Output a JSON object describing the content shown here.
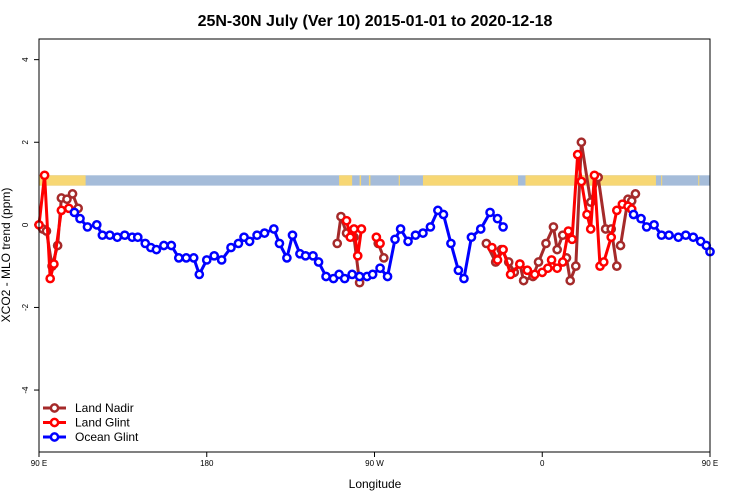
{
  "chart_data": {
    "type": "line",
    "title": "25N-30N July (Ver 10)   2015-01-01 to 2020-12-18",
    "xlabel": "Longitude",
    "ylabel": "XCO2 - MLO trend (ppm)",
    "xlim": [
      90,
      450
    ],
    "ylim": [
      -5.5,
      4.5
    ],
    "x_ticks": [
      {
        "value": 90,
        "label": "90 E"
      },
      {
        "value": 180,
        "label": "180"
      },
      {
        "value": 270,
        "label": "90 W"
      },
      {
        "value": 360,
        "label": "0"
      },
      {
        "value": 450,
        "label": "90 E"
      },
      {
        "value": 540,
        "label": "180"
      }
    ],
    "y_ticks": [
      {
        "value": 4,
        "label": "4"
      },
      {
        "value": 2,
        "label": "2"
      },
      {
        "value": 0,
        "label": "0"
      },
      {
        "value": -2,
        "label": "-2"
      },
      {
        "value": -4,
        "label": "-4"
      }
    ],
    "land_mask": {
      "y_bottom": 0.95,
      "y_top": 1.2,
      "ocean_color": "#a5bcd9",
      "land_color": "#f7d774",
      "land_intervals": [
        [
          90,
          115
        ],
        [
          251,
          258
        ],
        [
          262,
          262.8
        ],
        [
          267,
          267.8
        ],
        [
          283,
          283.6
        ],
        [
          296,
          347
        ],
        [
          351,
          421
        ],
        [
          423.8,
          424.2
        ],
        [
          443.7,
          444
        ]
      ]
    },
    "series": [
      {
        "name": "Land Nadir",
        "color": "#a52a2a",
        "segments": [
          {
            "x": [
              92,
              94,
              97,
              100,
              102,
              105,
              108,
              111
            ],
            "y": [
              -0.1,
              -0.15,
              -1.0,
              -0.5,
              0.65,
              0.62,
              0.75,
              0.4
            ]
          },
          {
            "x": [
              250,
              252,
              255,
              259,
              262
            ],
            "y": [
              -0.45,
              0.2,
              -0.2,
              -0.3,
              -1.4
            ]
          },
          {
            "x": [
              272,
              275
            ],
            "y": [
              -0.45,
              -0.8
            ]
          },
          {
            "x": [
              330,
              335,
              338,
              342,
              345,
              348,
              350,
              355,
              358,
              362,
              366,
              368,
              371
            ],
            "y": [
              -0.45,
              -0.9,
              -0.6,
              -0.9,
              -1.15,
              -0.95,
              -1.35,
              -1.25,
              -0.9,
              -0.45,
              -0.05,
              -0.6,
              -0.25
            ]
          },
          {
            "x": [
              373,
              375,
              378,
              381,
              386,
              390,
              394,
              397,
              400
            ],
            "y": [
              -0.8,
              -1.35,
              -1.0,
              2.0,
              0.55,
              1.15,
              -0.1,
              -0.1,
              -1.0
            ]
          },
          {
            "x": [
              402,
              406,
              408,
              410
            ],
            "y": [
              -0.5,
              0.62,
              0.58,
              0.75
            ]
          }
        ]
      },
      {
        "name": "Land Glint",
        "color": "#ff0000",
        "segments": [
          {
            "x": [
              90,
              93,
              96,
              98,
              102,
              106
            ],
            "y": [
              0.0,
              1.2,
              -1.3,
              -0.95,
              0.35,
              0.4
            ]
          },
          {
            "x": [
              255,
              257,
              259,
              261,
              263
            ],
            "y": [
              0.1,
              -0.3,
              -0.1,
              -0.75,
              -0.1
            ]
          },
          {
            "x": [
              271,
              273
            ],
            "y": [
              -0.3,
              -0.45
            ]
          },
          {
            "x": [
              333,
              336,
              339,
              343,
              348,
              352,
              356,
              360,
              363,
              365,
              368,
              371,
              374
            ],
            "y": [
              -0.55,
              -0.85,
              -0.6,
              -1.2,
              -0.95,
              -1.1,
              -1.2,
              -1.15,
              -1.05,
              -0.85,
              -1.05,
              -0.9,
              -0.15
            ]
          },
          {
            "x": [
              376,
              379,
              381,
              384,
              386,
              388,
              391,
              393,
              397,
              400,
              403
            ],
            "y": [
              -0.35,
              1.7,
              1.05,
              0.25,
              -0.1,
              1.2,
              -1.0,
              -0.9,
              -0.3,
              0.35,
              0.5
            ]
          },
          {
            "x": [
              406,
              408
            ],
            "y": [
              0.45,
              0.38
            ]
          }
        ]
      },
      {
        "name": "Ocean Glint",
        "color": "#0000ff",
        "segments": [
          {
            "x": [
              109,
              112,
              116,
              121,
              124,
              128,
              132,
              136,
              140,
              143,
              147,
              150,
              153,
              157,
              161,
              165,
              169,
              173,
              176,
              180,
              184,
              188,
              193,
              197,
              200,
              203,
              207,
              211,
              216,
              219,
              223,
              226,
              230,
              233,
              237,
              240,
              244,
              248,
              251,
              254,
              258,
              262,
              266,
              269,
              273,
              277,
              281,
              284,
              288,
              292,
              296,
              300,
              304,
              307,
              311,
              315,
              318,
              322,
              327,
              332,
              336,
              339
            ],
            "y": [
              0.3,
              0.15,
              -0.05,
              0.0,
              -0.25,
              -0.25,
              -0.3,
              -0.25,
              -0.3,
              -0.3,
              -0.45,
              -0.55,
              -0.6,
              -0.5,
              -0.5,
              -0.8,
              -0.8,
              -0.8,
              -1.2,
              -0.85,
              -0.75,
              -0.85,
              -0.55,
              -0.45,
              -0.3,
              -0.4,
              -0.25,
              -0.2,
              -0.1,
              -0.45,
              -0.8,
              -0.25,
              -0.7,
              -0.75,
              -0.75,
              -0.9,
              -1.25,
              -1.3,
              -1.2,
              -1.3,
              -1.2,
              -1.25,
              -1.25,
              -1.2,
              -1.05,
              -1.25,
              -0.35,
              -0.1,
              -0.4,
              -0.25,
              -0.2,
              -0.05,
              0.35,
              0.25,
              -0.45,
              -1.1,
              -1.3,
              -0.3,
              -0.1,
              0.3,
              0.15,
              -0.05
            ]
          },
          {
            "x": [
              409,
              413,
              416,
              420,
              424,
              428,
              433,
              437,
              441,
              445,
              448,
              450
            ],
            "y": [
              0.25,
              0.15,
              -0.05,
              0.0,
              -0.25,
              -0.25,
              -0.3,
              -0.25,
              -0.3,
              -0.4,
              -0.5,
              -0.65
            ]
          }
        ]
      }
    ],
    "legend_position": "bottom-left"
  }
}
